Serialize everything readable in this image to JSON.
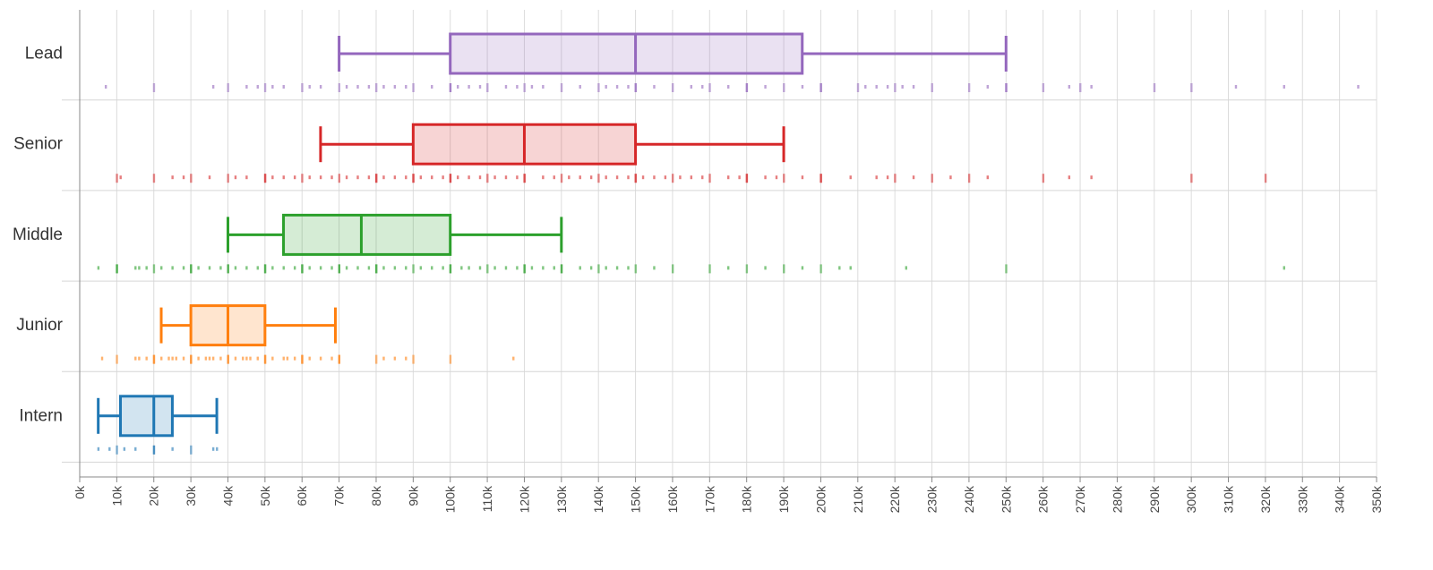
{
  "chart_data": {
    "type": "boxplot",
    "title": "",
    "xlabel": "",
    "ylabel": "",
    "xlim": [
      0,
      350000
    ],
    "grid": true,
    "tick_step": 10000,
    "tick_labels": [
      "0k",
      "10k",
      "20k",
      "30k",
      "40k",
      "50k",
      "60k",
      "70k",
      "80k",
      "90k",
      "100k",
      "110k",
      "120k",
      "130k",
      "140k",
      "150k",
      "160k",
      "170k",
      "180k",
      "190k",
      "200k",
      "210k",
      "220k",
      "230k",
      "240k",
      "250k",
      "260k",
      "270k",
      "280k",
      "290k",
      "300k",
      "310k",
      "320k",
      "330k",
      "340k",
      "350k"
    ],
    "categories": [
      "Lead",
      "Senior",
      "Middle",
      "Junior",
      "Intern"
    ],
    "series": [
      {
        "name": "Lead",
        "color": "#9467bd",
        "whisker_low": 70000,
        "q1": 100000,
        "median": 150000,
        "q3": 195000,
        "whisker_high": 250000,
        "points": [
          7000,
          20000,
          36000,
          40000,
          45000,
          48000,
          50000,
          52000,
          55000,
          60000,
          62000,
          65000,
          70000,
          72000,
          75000,
          78000,
          80000,
          82000,
          85000,
          88000,
          90000,
          95000,
          100000,
          100000,
          102000,
          105000,
          108000,
          110000,
          115000,
          118000,
          120000,
          122000,
          125000,
          130000,
          135000,
          140000,
          142000,
          145000,
          148000,
          150000,
          150000,
          155000,
          160000,
          165000,
          168000,
          170000,
          175000,
          180000,
          180000,
          185000,
          190000,
          195000,
          200000,
          200000,
          210000,
          212000,
          215000,
          218000,
          220000,
          222000,
          225000,
          230000,
          240000,
          245000,
          250000,
          250000,
          260000,
          267000,
          270000,
          273000,
          290000,
          300000,
          312000,
          325000,
          345000
        ]
      },
      {
        "name": "Senior",
        "color": "#d62728",
        "whisker_low": 65000,
        "q1": 90000,
        "median": 120000,
        "q3": 150000,
        "whisker_high": 190000,
        "points": [
          10000,
          11000,
          20000,
          25000,
          28000,
          30000,
          35000,
          40000,
          42000,
          45000,
          50000,
          50000,
          52000,
          55000,
          58000,
          60000,
          62000,
          65000,
          68000,
          70000,
          72000,
          75000,
          78000,
          80000,
          80000,
          82000,
          85000,
          88000,
          90000,
          90000,
          92000,
          95000,
          98000,
          100000,
          100000,
          102000,
          105000,
          108000,
          110000,
          112000,
          115000,
          118000,
          120000,
          120000,
          125000,
          128000,
          130000,
          132000,
          135000,
          138000,
          140000,
          142000,
          145000,
          148000,
          150000,
          150000,
          152000,
          155000,
          158000,
          160000,
          162000,
          165000,
          168000,
          170000,
          175000,
          178000,
          180000,
          180000,
          185000,
          188000,
          190000,
          195000,
          200000,
          200000,
          208000,
          215000,
          218000,
          220000,
          225000,
          230000,
          235000,
          240000,
          245000,
          260000,
          267000,
          273000,
          300000,
          320000
        ]
      },
      {
        "name": "Middle",
        "color": "#2ca02c",
        "whisker_low": 40000,
        "q1": 55000,
        "median": 76000,
        "q3": 100000,
        "whisker_high": 130000,
        "points": [
          5000,
          10000,
          10000,
          15000,
          16000,
          18000,
          20000,
          22000,
          25000,
          28000,
          30000,
          30000,
          32000,
          35000,
          38000,
          40000,
          40000,
          42000,
          45000,
          48000,
          50000,
          50000,
          52000,
          55000,
          58000,
          60000,
          60000,
          62000,
          65000,
          68000,
          70000,
          70000,
          72000,
          75000,
          78000,
          80000,
          80000,
          82000,
          85000,
          88000,
          90000,
          92000,
          95000,
          98000,
          100000,
          100000,
          103000,
          105000,
          108000,
          110000,
          112000,
          115000,
          118000,
          120000,
          120000,
          122000,
          125000,
          128000,
          130000,
          130000,
          135000,
          138000,
          140000,
          142000,
          145000,
          148000,
          150000,
          155000,
          160000,
          170000,
          175000,
          180000,
          185000,
          190000,
          195000,
          200000,
          205000,
          208000,
          223000,
          250000,
          325000
        ]
      },
      {
        "name": "Junior",
        "color": "#ff7f0e",
        "whisker_low": 22000,
        "q1": 30000,
        "median": 40000,
        "q3": 50000,
        "whisker_high": 69000,
        "points": [
          6000,
          10000,
          15000,
          16000,
          18000,
          20000,
          20000,
          22000,
          24000,
          25000,
          26000,
          28000,
          30000,
          30000,
          32000,
          34000,
          35000,
          36000,
          38000,
          40000,
          40000,
          42000,
          44000,
          45000,
          46000,
          48000,
          50000,
          50000,
          52000,
          55000,
          56000,
          58000,
          60000,
          60000,
          62000,
          65000,
          68000,
          70000,
          70000,
          80000,
          82000,
          85000,
          88000,
          90000,
          100000,
          117000
        ]
      },
      {
        "name": "Intern",
        "color": "#1f77b4",
        "whisker_low": 5000,
        "q1": 11000,
        "median": 20000,
        "q3": 25000,
        "whisker_high": 37000,
        "points": [
          5000,
          8000,
          10000,
          12000,
          15000,
          20000,
          20000,
          25000,
          30000,
          36000,
          37000
        ]
      }
    ]
  }
}
